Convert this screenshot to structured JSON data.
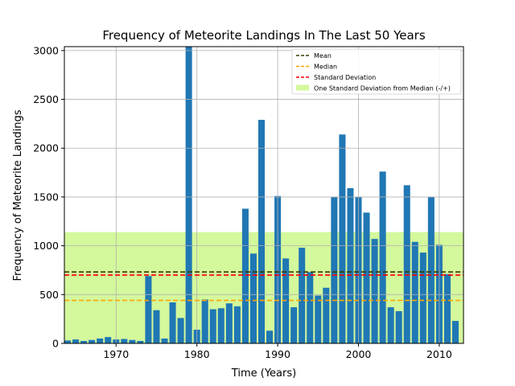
{
  "chart_data": {
    "type": "bar",
    "title": "Frequency of Meteorite Landings In The Last 50 Years",
    "xlabel": "Time (Years)",
    "ylabel": "Frequency of Meteorite Landings",
    "xlim": [
      1963.6,
      2013.0
    ],
    "ylim": [
      0,
      3040
    ],
    "x_ticks": [
      1970,
      1980,
      1990,
      2000,
      2010
    ],
    "y_ticks": [
      0,
      500,
      1000,
      1500,
      2000,
      2500,
      3000
    ],
    "grid": true,
    "legend_position": "top-right",
    "bar_color": "#1f77b4",
    "x": [
      1964,
      1965,
      1966,
      1967,
      1968,
      1969,
      1970,
      1971,
      1972,
      1973,
      1974,
      1975,
      1976,
      1977,
      1978,
      1979,
      1980,
      1981,
      1982,
      1983,
      1984,
      1985,
      1986,
      1987,
      1988,
      1989,
      1990,
      1991,
      1992,
      1993,
      1994,
      1995,
      1996,
      1997,
      1998,
      1999,
      2000,
      2001,
      2002,
      2003,
      2004,
      2005,
      2006,
      2007,
      2008,
      2009,
      2010,
      2011,
      2012
    ],
    "values": [
      30,
      40,
      25,
      35,
      50,
      65,
      40,
      45,
      35,
      25,
      690,
      340,
      50,
      420,
      260,
      3040,
      140,
      450,
      350,
      360,
      410,
      380,
      1380,
      920,
      2290,
      130,
      1510,
      870,
      370,
      980,
      730,
      490,
      570,
      1500,
      2140,
      1590,
      1500,
      1340,
      1070,
      1760,
      370,
      330,
      1620,
      1040,
      930,
      1500,
      1010,
      710,
      230
    ],
    "reference_lines": [
      {
        "name": "Mean",
        "value": 732,
        "color": "#3b3b00"
      },
      {
        "name": "Median",
        "value": 440,
        "color": "#ffa500"
      },
      {
        "name": "Standard Deviation",
        "value": 700,
        "color": "#ff0000"
      }
    ],
    "band": {
      "name": "One Standard Deviation from Median (-/+)",
      "low": 0,
      "high": 1140,
      "color": "#d4f89c"
    }
  }
}
